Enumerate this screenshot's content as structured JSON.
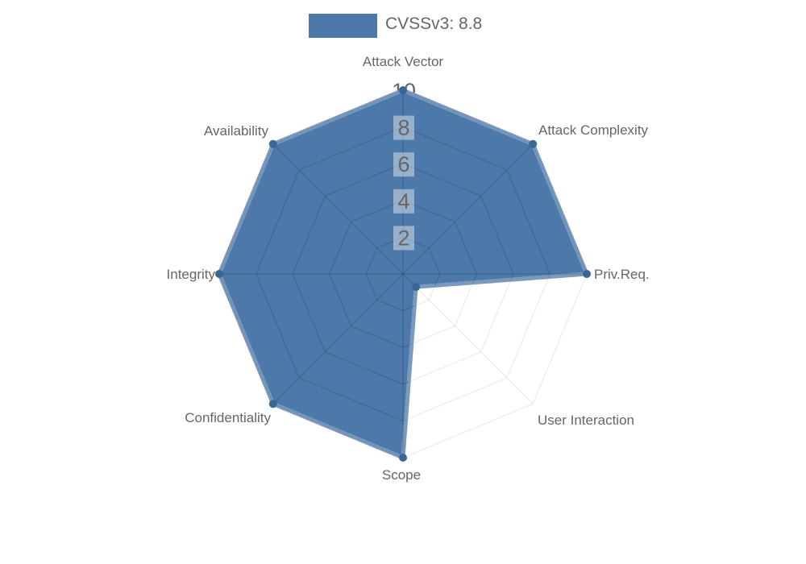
{
  "page": {
    "background": "#ffffff"
  },
  "legend": {
    "label": "CVSSv3: 8.8",
    "swatch_color": "#4C79AA",
    "text_color": "#666666",
    "position": "top"
  },
  "chart_data": {
    "type": "radar",
    "title": "",
    "categories": [
      "Attack Vector",
      "Attack Complexity",
      "Priv.Req.",
      "User Interaction",
      "Scope",
      "Confidentiality",
      "Integrity",
      "Availability"
    ],
    "series": [
      {
        "name": "CVSSv3: 8.8",
        "values": [
          10,
          10,
          10,
          1,
          10,
          10,
          10,
          10
        ]
      }
    ],
    "rlim": [
      0,
      10
    ],
    "ticks": [
      2,
      4,
      6,
      8,
      10
    ],
    "grid": true,
    "grid_rings": 5,
    "legend_position": "top",
    "fill_color": "#4C79AA",
    "border_color": "#7A99BE",
    "point_color": "#3A6695",
    "axis_label_color": "#666666",
    "tick_label_color": "#666666",
    "tick_backdrop_color": "rgba(255,255,255,0.42)",
    "grid_color_inside": "rgba(0,0,0,0.15)",
    "grid_color_outside": "rgba(0,0,0,0.08)"
  }
}
